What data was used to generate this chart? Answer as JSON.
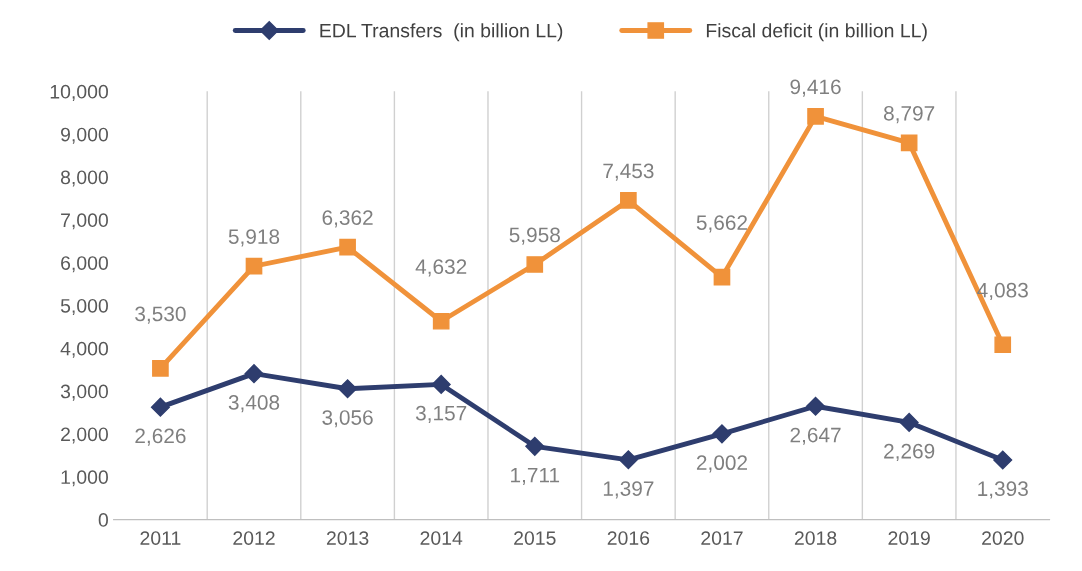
{
  "chart_data": {
    "type": "line",
    "categories": [
      "2011",
      "2012",
      "2013",
      "2014",
      "2015",
      "2016",
      "2017",
      "2018",
      "2019",
      "2020"
    ],
    "series": [
      {
        "name": "EDL Transfers  (in billion LL)",
        "color": "#2e3d6e",
        "marker": "diamond",
        "values": [
          2626,
          3408,
          3056,
          3157,
          1711,
          1397,
          2002,
          2647,
          2269,
          1393
        ],
        "value_labels": [
          "2,626",
          "3,408",
          "3,056",
          "3,157",
          "1,711",
          "1,397",
          "2,002",
          "2,647",
          "2,269",
          "1,393"
        ]
      },
      {
        "name": "Fiscal deficit (in billion LL)",
        "color": "#f0923a",
        "marker": "square",
        "values": [
          3530,
          5918,
          6362,
          4632,
          5958,
          7453,
          5662,
          9416,
          8797,
          4083
        ],
        "value_labels": [
          "3,530",
          "5,918",
          "6,362",
          "4,632",
          "5,958",
          "7,453",
          "5,662",
          "9,416",
          "8,797",
          "4,083"
        ]
      }
    ],
    "ylim": [
      0,
      10000
    ],
    "yticks": [
      0,
      {
        "value": 1000,
        "label": "1,000"
      },
      {
        "value": 2000,
        "label": "2,000"
      },
      {
        "value": 3000,
        "label": "3,000"
      },
      {
        "value": 4000,
        "label": "4,000"
      },
      {
        "value": 5000,
        "label": "5,000"
      },
      {
        "value": 6000,
        "label": "6,000"
      },
      {
        "value": 7000,
        "label": "7,000"
      },
      {
        "value": 8000,
        "label": "8,000"
      },
      {
        "value": 9000,
        "label": "9,000"
      },
      {
        "value": 10000,
        "label": "10,000"
      }
    ],
    "grid": "x",
    "legend": "top",
    "line_style": "solid"
  }
}
